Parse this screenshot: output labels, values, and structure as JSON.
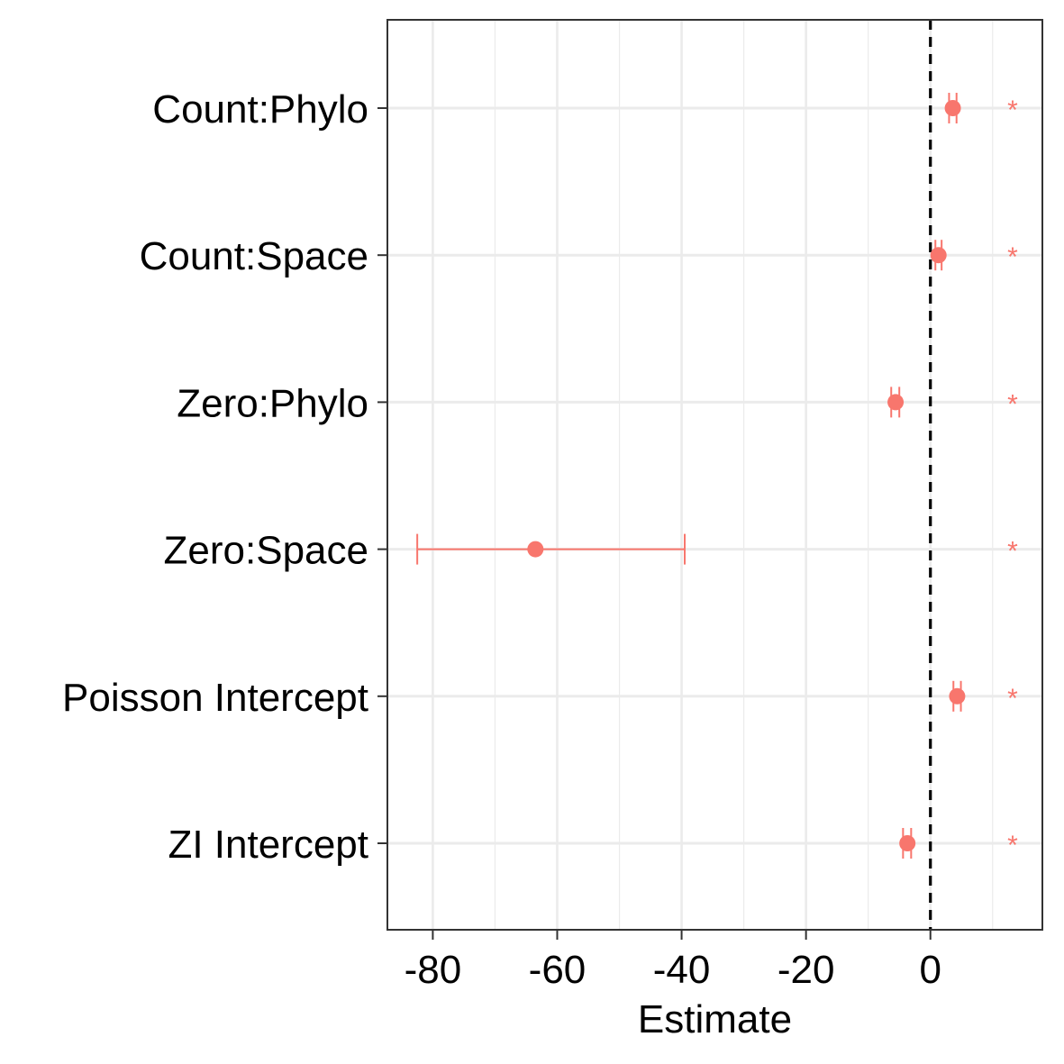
{
  "chart_data": {
    "type": "forest",
    "xlabel": "Estimate",
    "ylabel": "",
    "title": "",
    "xlim": [
      -87.3,
      18
    ],
    "x_ticks": [
      -80,
      -60,
      -40,
      -20,
      0
    ],
    "x_tick_labels": [
      "-80",
      "-60",
      "-40",
      "-20",
      "0"
    ],
    "x_minor_ticks": [
      -70,
      -50,
      -30,
      -10,
      10
    ],
    "reference_line": 0,
    "reference_line_style": "dashed",
    "grid": true,
    "point_color": "#F8766D",
    "rows": [
      {
        "label": "Count:Phylo",
        "estimate": 3.6,
        "lower": 3.0,
        "upper": 4.2,
        "significance": "*"
      },
      {
        "label": "Count:Space",
        "estimate": 1.3,
        "lower": 0.8,
        "upper": 1.8,
        "significance": "*"
      },
      {
        "label": "Zero:Phylo",
        "estimate": -5.6,
        "lower": -6.3,
        "upper": -5.0,
        "significance": "*"
      },
      {
        "label": "Zero:Space",
        "estimate": -63.5,
        "lower": -82.5,
        "upper": -39.5,
        "significance": "*"
      },
      {
        "label": "Poisson Intercept",
        "estimate": 4.3,
        "lower": 3.7,
        "upper": 4.9,
        "significance": "*"
      },
      {
        "label": "ZI Intercept",
        "estimate": -3.7,
        "lower": -4.4,
        "upper": -3.1,
        "significance": "*"
      }
    ]
  }
}
